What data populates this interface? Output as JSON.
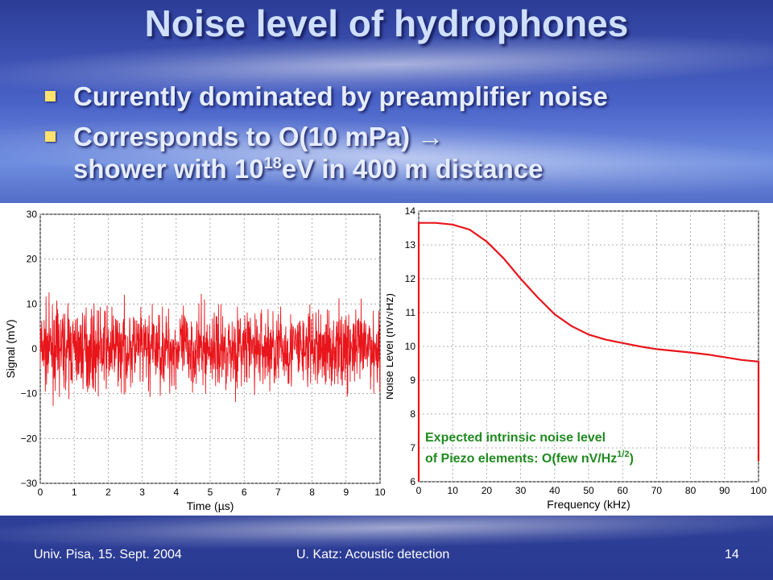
{
  "slide": {
    "title": "Noise level of hydrophones",
    "bullets": [
      {
        "line1": "Currently dominated by preamplifier noise"
      },
      {
        "line1": "Corresponds to O(10 mPa) →",
        "line2_pre": "shower with 10",
        "line2_sup": "18",
        "line2_post": "eV in 400 m distance"
      }
    ],
    "footer": {
      "left": "Univ. Pisa, 15. Sept. 2004",
      "center": "U. Katz: Acoustic detection",
      "right": "14"
    },
    "colors": {
      "title": "#cfe0ff",
      "bullet_marker": "#ffe26b",
      "trace": "#e8151b",
      "annotation": "#1f8a1f"
    }
  },
  "chart_data": [
    {
      "type": "line",
      "xlabel": "Time (µs)",
      "ylabel": "Signal (mV)",
      "xlim": [
        0,
        10
      ],
      "ylim": [
        -30,
        30
      ],
      "xticks": [
        "0",
        "1",
        "2",
        "3",
        "4",
        "5",
        "6",
        "7",
        "8",
        "9",
        "10"
      ],
      "yticks": [
        "−30",
        "−20",
        "−10",
        "0",
        "10",
        "20",
        "30"
      ],
      "grid": true,
      "series": [
        {
          "description_values": "random noise band",
          "mean": 0,
          "amplitude_typical": 7,
          "amplitude_peak": 15
        }
      ]
    },
    {
      "type": "line",
      "xlabel": "Frequency (kHz)",
      "ylabel": "Noise Level (nV/√Hz)",
      "xlim": [
        0,
        100
      ],
      "ylim": [
        6,
        14
      ],
      "xticks": [
        "0",
        "10",
        "20",
        "30",
        "40",
        "50",
        "60",
        "70",
        "80",
        "90",
        "100"
      ],
      "yticks": [
        "6",
        "7",
        "8",
        "9",
        "10",
        "11",
        "12",
        "13",
        "14"
      ],
      "grid": true,
      "x": [
        0,
        5,
        10,
        15,
        20,
        25,
        30,
        35,
        40,
        45,
        50,
        55,
        60,
        65,
        70,
        75,
        80,
        85,
        90,
        95,
        100
      ],
      "series": [
        {
          "values": [
            13.65,
            13.65,
            13.6,
            13.45,
            13.1,
            12.6,
            12.0,
            11.45,
            10.95,
            10.6,
            10.35,
            10.2,
            10.1,
            10.0,
            9.92,
            9.87,
            9.82,
            9.76,
            9.68,
            9.6,
            9.55
          ]
        }
      ],
      "annotation": {
        "line1": "Expected intrinsic noise level",
        "line2_pre": "of Piezo elements: O(few nV/Hz",
        "line2_sup": "1/2",
        "line2_post": ")"
      }
    }
  ]
}
